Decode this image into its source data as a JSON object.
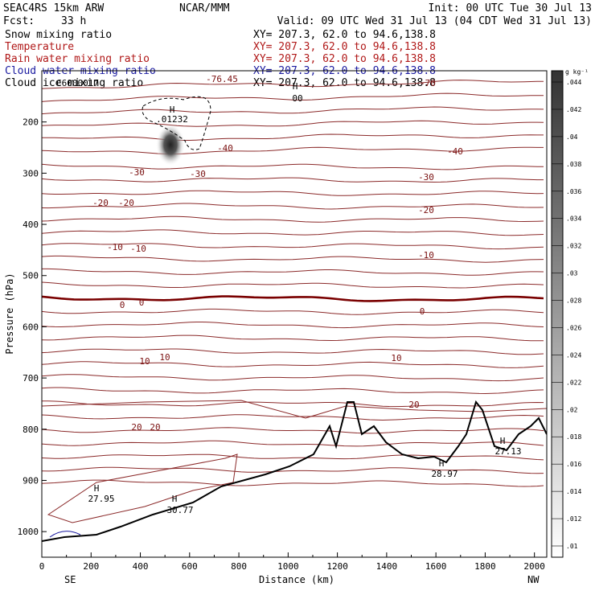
{
  "header": {
    "model": "SEAC4RS 15km ARW",
    "center": "NCAR/MMM",
    "init": "Init: 00 UTC Tue 30 Jul 13",
    "fcst_label": "Fcst:",
    "fcst_value": "33 h",
    "valid": "Valid: 09 UTC Wed 31 Jul 13 (04 CDT Wed 31 Jul 13)"
  },
  "fields": [
    {
      "name": "Snow mixing ratio",
      "xy": "XY= 207.3, 62.0 to  94.6,138.8",
      "color": "#000000"
    },
    {
      "name": "Temperature",
      "xy": "XY= 207.3, 62.0 to  94.6,138.8",
      "color": "#b01818"
    },
    {
      "name": "Rain water mixing ratio",
      "xy": "XY= 207.3, 62.0 to  94.6,138.8",
      "color": "#b01818"
    },
    {
      "name": "Cloud water mixing ratio",
      "xy": "XY= 207.3, 62.0 to  94.6,138.8",
      "color": "#1a1aa0"
    },
    {
      "name": "Cloud ice mixing ratio",
      "xy": "XY= 207.3, 62.0 to  94.6,138.8",
      "color": "#000000"
    }
  ],
  "chart_data": {
    "type": "contour-cross-section",
    "xlabel": "Distance (km)",
    "ylabel": "Pressure (hPa)",
    "xlim": [
      0,
      2050
    ],
    "ylim": [
      1050,
      100
    ],
    "x_ticks": [
      "0",
      "200",
      "400",
      "600",
      "800",
      "1000",
      "1200",
      "1400",
      "1600",
      "1800",
      "2000"
    ],
    "y_ticks": [
      "200",
      "300",
      "400",
      "500",
      "600",
      "700",
      "800",
      "900",
      "1000"
    ],
    "x_ends": {
      "left": "SE",
      "right": "NW"
    },
    "colorbar": {
      "unit": "g kg⁻¹",
      "ticks": [
        ".01",
        ".012",
        ".014",
        ".016",
        ".018",
        ".02",
        ".022",
        ".024",
        ".026",
        ".028",
        ".03",
        ".032",
        ".034",
        ".036",
        ".038",
        ".04",
        ".042",
        ".044"
      ]
    },
    "temperature_contour_labels": [
      "-76.45",
      "-70",
      "-40",
      "-40",
      "-30",
      "-30",
      "-30",
      "-20",
      "-20",
      "-20",
      "-10",
      "-10",
      "-10",
      "0",
      "0",
      "0",
      "10",
      "10",
      "10",
      "20",
      "20",
      "20"
    ],
    "extrema": [
      {
        "label": "H",
        "value": ".01232"
      },
      {
        "label": "H",
        "value": "00"
      },
      {
        "label": "H",
        "value": "27.95"
      },
      {
        "label": "H",
        "value": "30.77"
      },
      {
        "label": "H",
        "value": "28.97"
      },
      {
        "label": "H",
        "value": "27.13"
      }
    ],
    "overlapped_text": "C6000017"
  },
  "colors": {
    "temperature": "#8b2a2a",
    "zero_isotherm": "#7a0000",
    "terrain": "#000000",
    "cloud_water": "#1a1aa0"
  }
}
